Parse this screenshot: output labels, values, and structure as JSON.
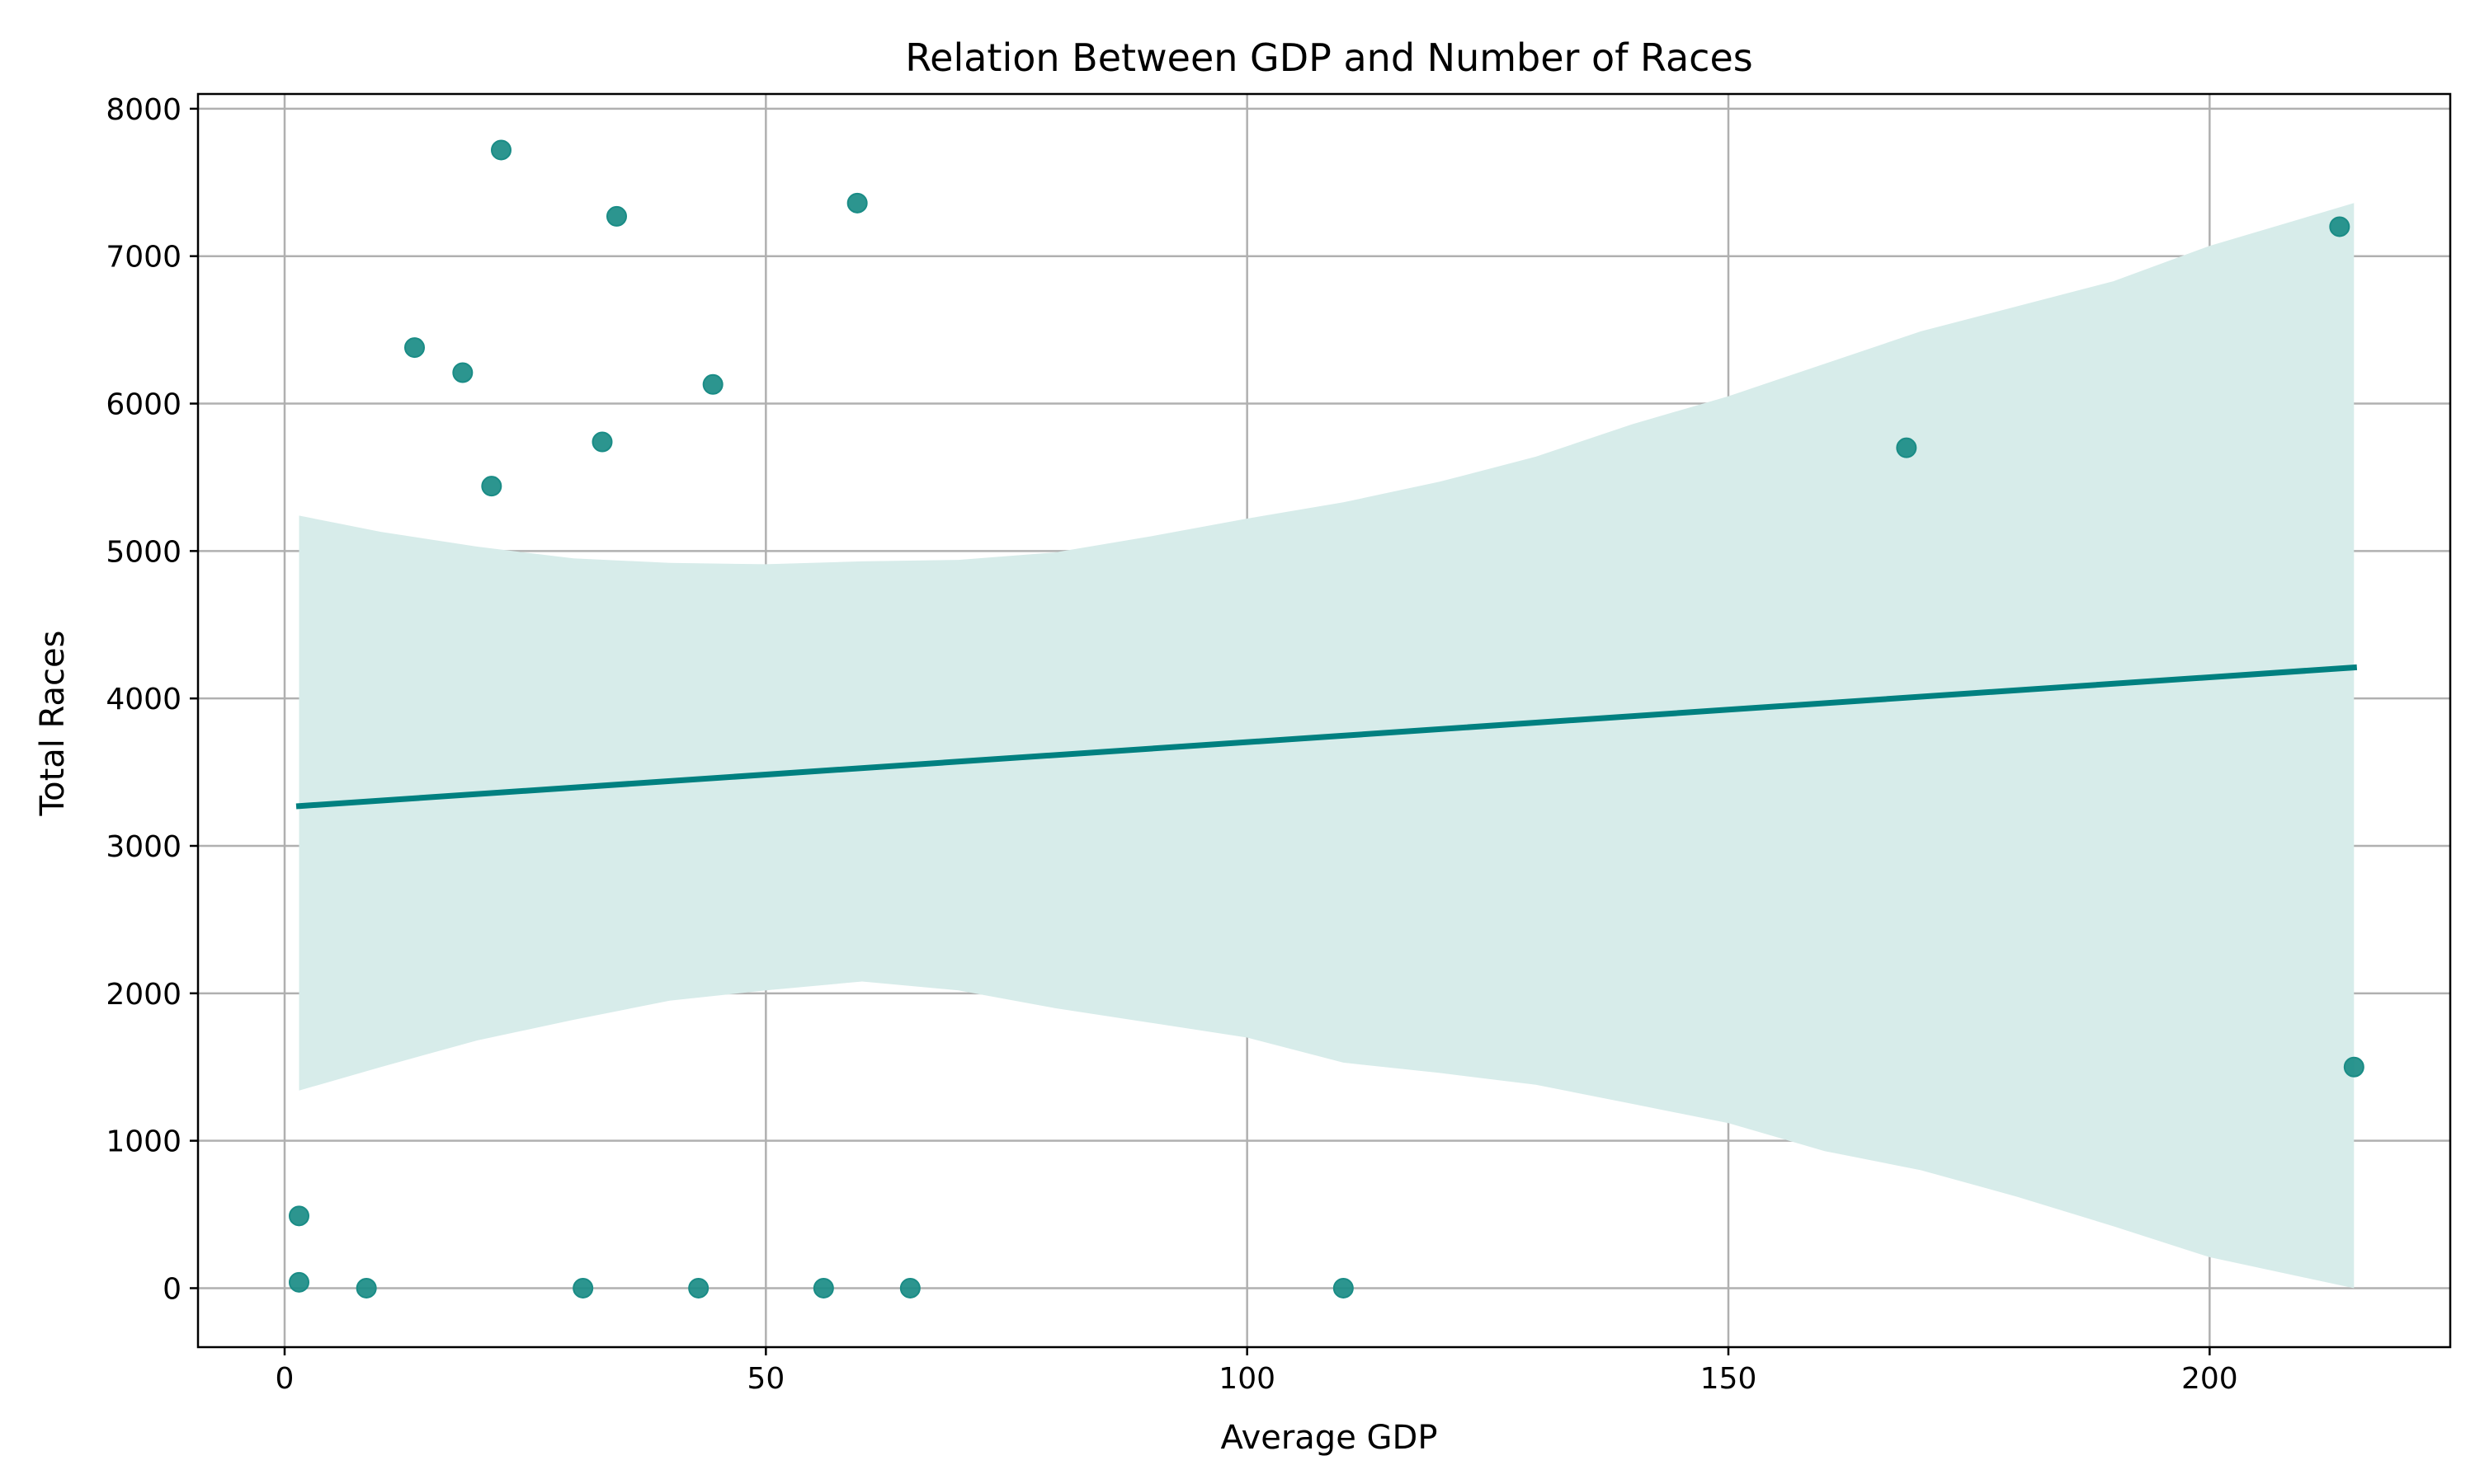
{
  "chart_data": {
    "type": "scatter",
    "title": "Relation Between GDP and Number of Races",
    "xlabel": "Average GDP",
    "ylabel": "Total Races",
    "xlim": [
      -9,
      225
    ],
    "ylim": [
      -400,
      8100
    ],
    "xticks": [
      0,
      50,
      100,
      150,
      200
    ],
    "yticks": [
      0,
      1000,
      2000,
      3000,
      4000,
      5000,
      6000,
      7000,
      8000
    ],
    "grid": true,
    "colors": {
      "points": "#1a8c86",
      "point_edge": "#1a8c86",
      "regression_line": "#008080",
      "confidence_band": "#d7ecea",
      "grid": "#b0b0b0"
    },
    "points": [
      {
        "x": 1.5,
        "y": 490
      },
      {
        "x": 1.5,
        "y": 40
      },
      {
        "x": 8.5,
        "y": 0
      },
      {
        "x": 13.5,
        "y": 6380
      },
      {
        "x": 18.5,
        "y": 6210
      },
      {
        "x": 21.5,
        "y": 5440
      },
      {
        "x": 22.5,
        "y": 7720
      },
      {
        "x": 31,
        "y": 0
      },
      {
        "x": 33,
        "y": 5740
      },
      {
        "x": 34.5,
        "y": 7270
      },
      {
        "x": 43,
        "y": 0
      },
      {
        "x": 44.5,
        "y": 6130
      },
      {
        "x": 56,
        "y": 0
      },
      {
        "x": 59.5,
        "y": 7360
      },
      {
        "x": 65,
        "y": 0
      },
      {
        "x": 110,
        "y": 0
      },
      {
        "x": 168.5,
        "y": 5700
      },
      {
        "x": 213.5,
        "y": 7200
      },
      {
        "x": 215,
        "y": 1500
      }
    ],
    "regression_line": {
      "x": [
        1.5,
        215
      ],
      "y": [
        3270,
        4210
      ]
    },
    "confidence_band": {
      "x": [
        1.5,
        10,
        20,
        30,
        40,
        50,
        60,
        70,
        80,
        90,
        100,
        110,
        120,
        130,
        140,
        150,
        160,
        170,
        180,
        190,
        200,
        215
      ],
      "upper": [
        5240,
        5130,
        5030,
        4950,
        4920,
        4910,
        4930,
        4940,
        4990,
        5100,
        5220,
        5330,
        5470,
        5640,
        5860,
        6050,
        6270,
        6490,
        6660,
        6830,
        7070,
        7360
      ],
      "lower": [
        1340,
        1500,
        1680,
        1820,
        1950,
        2020,
        2080,
        2020,
        1900,
        1800,
        1700,
        1530,
        1460,
        1380,
        1250,
        1120,
        930,
        800,
        620,
        420,
        210,
        0
      ]
    }
  }
}
